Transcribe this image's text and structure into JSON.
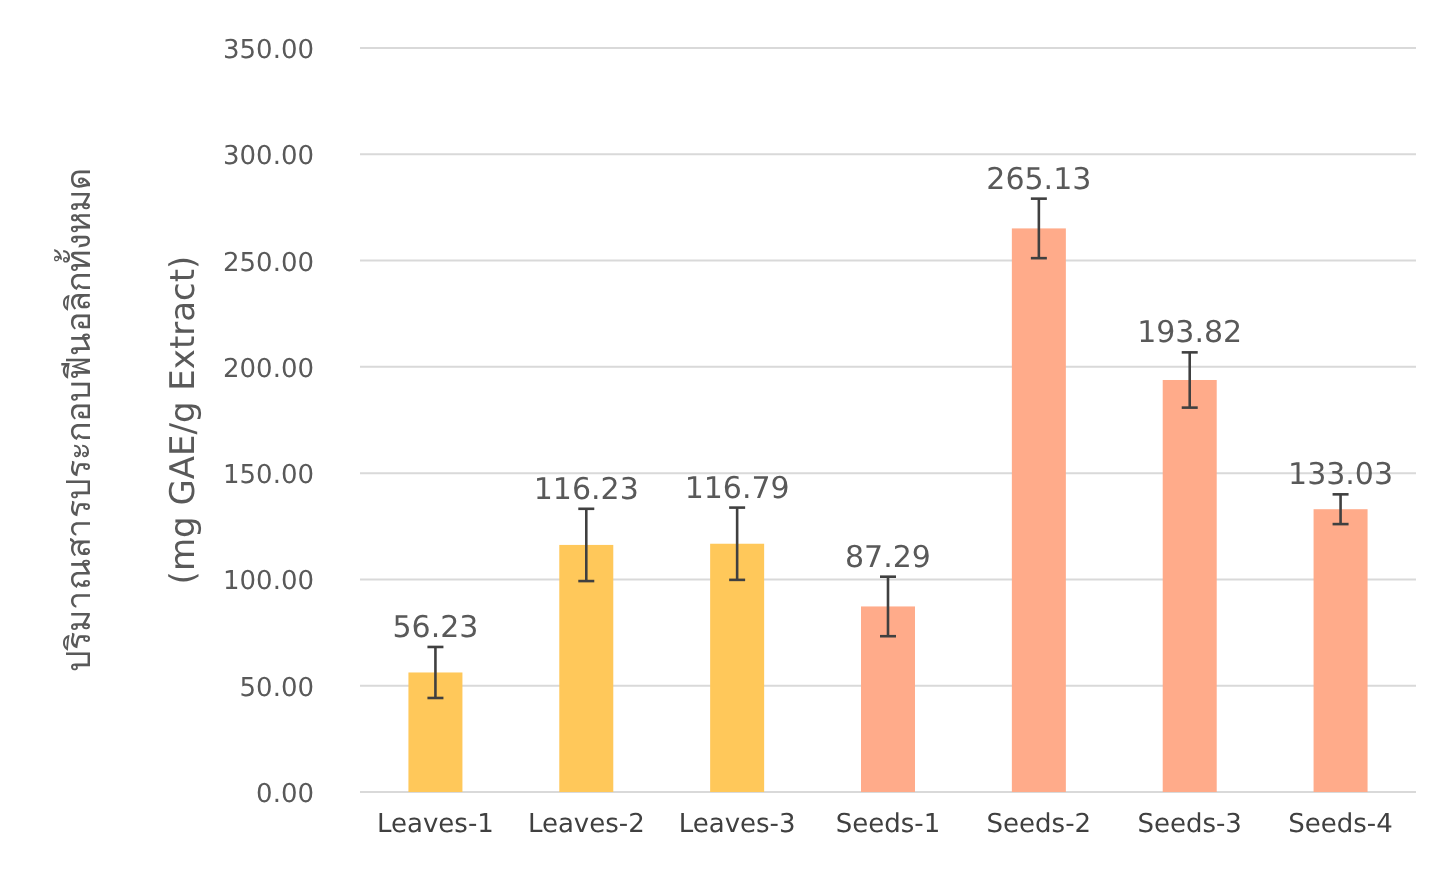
{
  "chart_data": {
    "type": "bar",
    "ylabel": "ปริมาณสารประกอบฟีนอลิกทั้งหมด\n(mg GAE/g Extract)",
    "categories": [
      "Leaves-1",
      "Leaves-2",
      "Leaves-3",
      "Seeds-1",
      "Seeds-2",
      "Seeds-3",
      "Seeds-4"
    ],
    "values": [
      56.23,
      116.23,
      116.79,
      87.29,
      265.13,
      193.82,
      133.03
    ],
    "errors": [
      12,
      17,
      17,
      14,
      14,
      13,
      7
    ],
    "colors": [
      "#ffc85a",
      "#ffc85a",
      "#ffc85a",
      "#ffab8a",
      "#ffab8a",
      "#ffab8a",
      "#ffab8a"
    ],
    "data_labels": true,
    "grid": "y",
    "ylim": [
      0,
      350
    ],
    "yticks": [
      {
        "value": 0,
        "label": "0.00"
      },
      {
        "value": 50,
        "label": "50.00"
      },
      {
        "value": 100,
        "label": "100.00"
      },
      {
        "value": 150,
        "label": "150.00"
      },
      {
        "value": 200,
        "label": "200.00"
      },
      {
        "value": 250,
        "label": "250.00"
      },
      {
        "value": 300,
        "label": "300.00"
      },
      {
        "value": 350,
        "label": "350.00"
      }
    ]
  }
}
